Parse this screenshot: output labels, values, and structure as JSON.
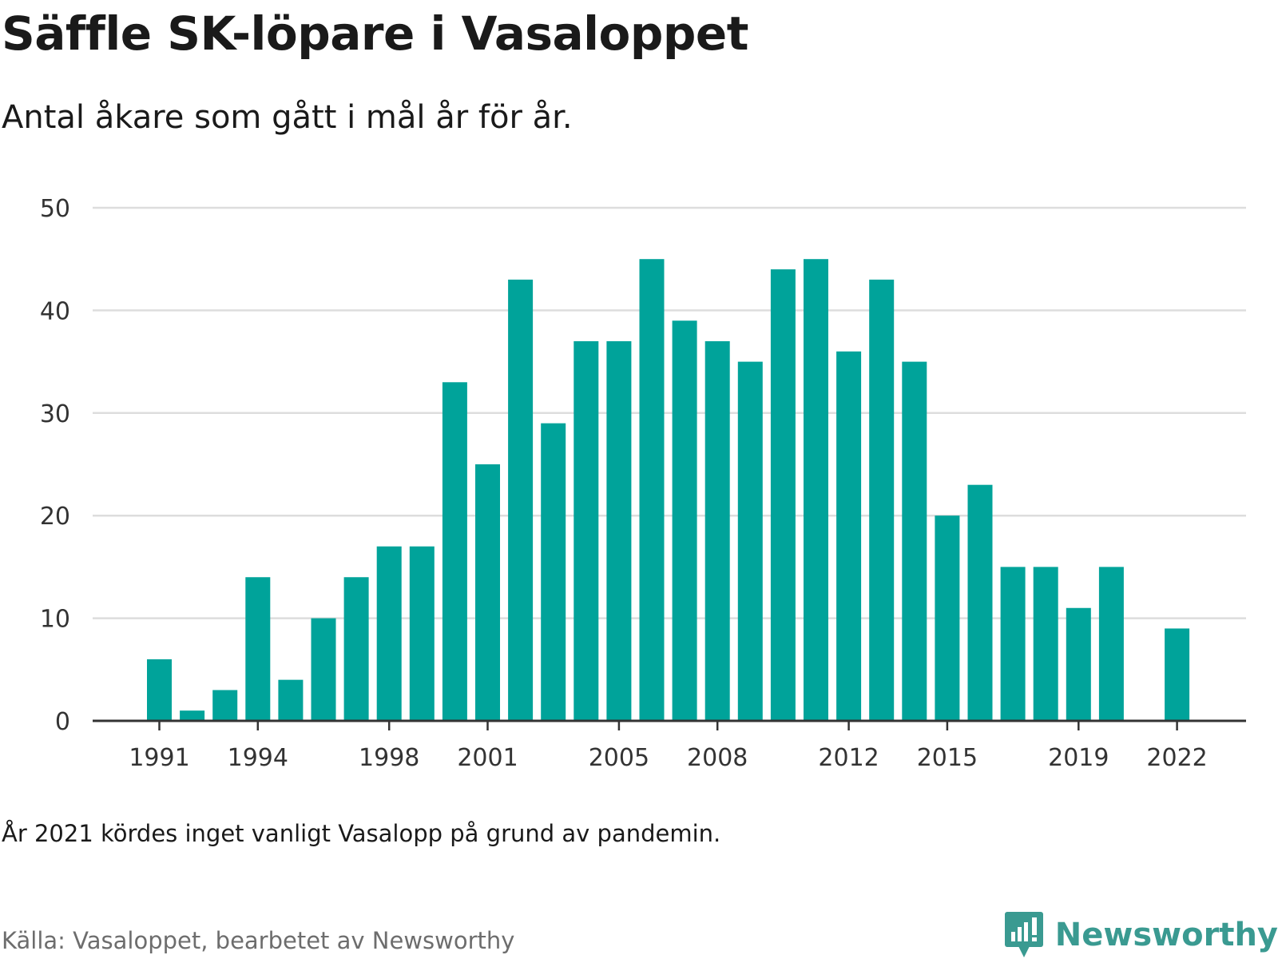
{
  "title": "Säffle SK-löpare i Vasaloppet",
  "subtitle": "Antal åkare som gått i mål år för år.",
  "note": "År 2021 kördes inget vanligt Vasalopp på grund av pandemin.",
  "source": "Källa: Vasaloppet, bearbetet av Newsworthy",
  "brand": {
    "name": "Newsworthy",
    "icon": "newsworthy-logo-icon",
    "color": "#3a9a91"
  },
  "chart_data": {
    "type": "bar",
    "categories": [
      "1991",
      "1992",
      "1993",
      "1994",
      "1995",
      "1996",
      "1997",
      "1998",
      "1999",
      "2000",
      "2001",
      "2002",
      "2003",
      "2004",
      "2005",
      "2006",
      "2007",
      "2008",
      "2009",
      "2010",
      "2011",
      "2012",
      "2013",
      "2014",
      "2015",
      "2016",
      "2017",
      "2018",
      "2019",
      "2020",
      "2021",
      "2022"
    ],
    "values": [
      6,
      1,
      3,
      14,
      4,
      10,
      14,
      17,
      17,
      33,
      25,
      43,
      29,
      37,
      37,
      45,
      39,
      37,
      35,
      44,
      45,
      36,
      43,
      35,
      20,
      23,
      15,
      15,
      11,
      15,
      null,
      9
    ],
    "x_tick_labels": [
      "1991",
      "1994",
      "1998",
      "2001",
      "2005",
      "2008",
      "2012",
      "2015",
      "2019",
      "2022"
    ],
    "y_ticks": [
      "0",
      "10",
      "20",
      "30",
      "40",
      "50"
    ],
    "ylim": [
      0,
      50
    ],
    "grid": true,
    "legend": "none",
    "bar_color": "#00a39a",
    "grid_color": "#dddddd",
    "axis_color": "#333333"
  }
}
